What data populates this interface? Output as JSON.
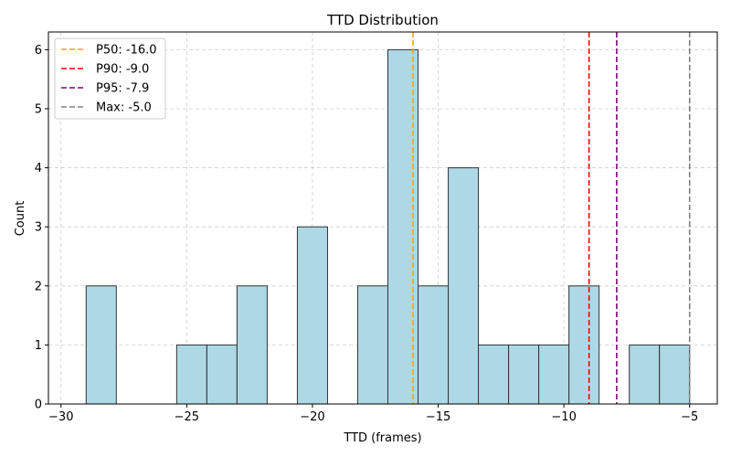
{
  "chart_data": {
    "type": "bar",
    "title": "TTD Distribution",
    "xlabel": "TTD (frames)",
    "ylabel": "Count",
    "xlim": [
      -30.5,
      -3.9
    ],
    "ylim": [
      0,
      6.3
    ],
    "xticks": [
      -30,
      -25,
      -20,
      -15,
      -10,
      -5
    ],
    "yticks": [
      0,
      1,
      2,
      3,
      4,
      5,
      6
    ],
    "grid": true,
    "bar_color": "#add8e6",
    "bar_edge_color": "#333333",
    "bins": [
      {
        "x0": -29.0,
        "x1": -27.8,
        "count": 2
      },
      {
        "x0": -25.4,
        "x1": -24.2,
        "count": 1
      },
      {
        "x0": -24.2,
        "x1": -23.0,
        "count": 1
      },
      {
        "x0": -23.0,
        "x1": -21.8,
        "count": 2
      },
      {
        "x0": -20.6,
        "x1": -19.4,
        "count": 3
      },
      {
        "x0": -18.2,
        "x1": -17.0,
        "count": 2
      },
      {
        "x0": -17.0,
        "x1": -15.8,
        "count": 6
      },
      {
        "x0": -15.8,
        "x1": -14.6,
        "count": 2
      },
      {
        "x0": -14.6,
        "x1": -13.4,
        "count": 4
      },
      {
        "x0": -13.4,
        "x1": -12.2,
        "count": 1
      },
      {
        "x0": -12.2,
        "x1": -11.0,
        "count": 1
      },
      {
        "x0": -11.0,
        "x1": -9.8,
        "count": 1
      },
      {
        "x0": -9.8,
        "x1": -8.6,
        "count": 2
      },
      {
        "x0": -7.4,
        "x1": -6.2,
        "count": 1
      },
      {
        "x0": -6.2,
        "x1": -5.0,
        "count": 1
      }
    ],
    "reference_lines": [
      {
        "label": "P50: -16.0",
        "x": -16.0,
        "color": "#ffa500"
      },
      {
        "label": "P90: -9.0",
        "x": -9.0,
        "color": "#ff0000"
      },
      {
        "label": "P95: -7.9",
        "x": -7.9,
        "color": "#800080"
      },
      {
        "label": "Max: -5.0",
        "x": -5.0,
        "color": "#808080"
      }
    ],
    "legend_position": "top-left"
  }
}
